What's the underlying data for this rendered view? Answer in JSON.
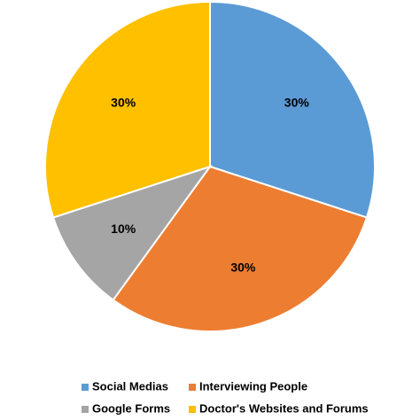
{
  "chart_data": {
    "type": "pie",
    "categories": [
      "Social Medias",
      "Interviewing People",
      "Google Forms",
      "Doctor's Websites and Forums"
    ],
    "values": [
      30,
      30,
      10,
      30
    ],
    "value_labels": [
      "30%",
      "30%",
      "10%",
      "30%"
    ],
    "colors": [
      "#5b9bd5",
      "#ed7d31",
      "#a5a5a5",
      "#ffc000"
    ],
    "legend": "bottom"
  }
}
